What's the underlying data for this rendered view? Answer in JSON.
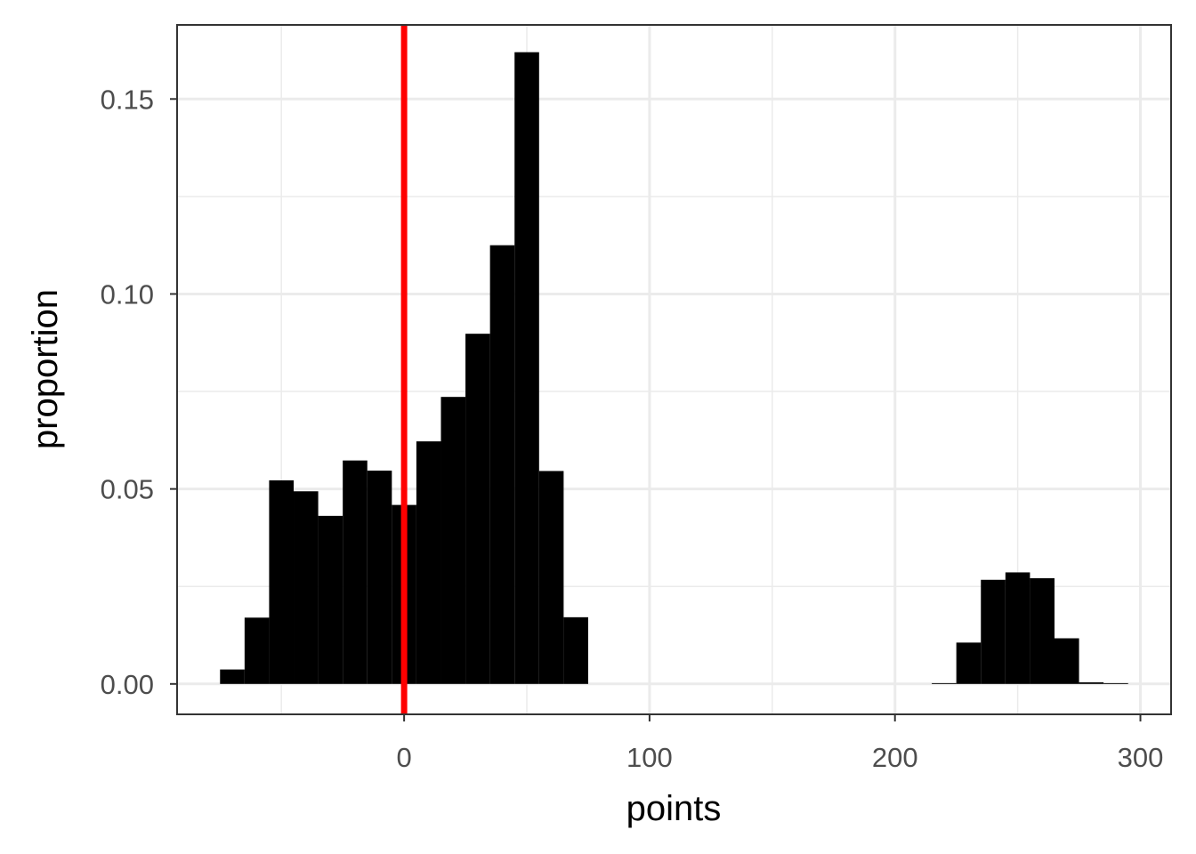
{
  "chart_data": {
    "type": "bar",
    "xlabel": "points",
    "ylabel": "proportion",
    "xlim": [
      -92.5,
      312.5
    ],
    "ylim": [
      -0.0078,
      0.169
    ],
    "x_ticks": [
      {
        "value": 0,
        "label": "0"
      },
      {
        "value": 100,
        "label": "100"
      },
      {
        "value": 200,
        "label": "200"
      },
      {
        "value": 300,
        "label": "300"
      }
    ],
    "y_ticks": [
      {
        "value": 0.0,
        "label": "0.00"
      },
      {
        "value": 0.05,
        "label": "0.05"
      },
      {
        "value": 0.1,
        "label": "0.10"
      },
      {
        "value": 0.15,
        "label": "0.15"
      }
    ],
    "x_minor_grid": [
      -50,
      50,
      150,
      250
    ],
    "y_minor_grid": [
      0.025,
      0.075,
      0.125
    ],
    "grid": true,
    "bin_width": 10,
    "bins": [
      {
        "x": -70,
        "y": 0.0037
      },
      {
        "x": -60,
        "y": 0.017
      },
      {
        "x": -50,
        "y": 0.0522
      },
      {
        "x": -40,
        "y": 0.0494
      },
      {
        "x": -30,
        "y": 0.0431
      },
      {
        "x": -20,
        "y": 0.0573
      },
      {
        "x": -10,
        "y": 0.0547
      },
      {
        "x": 0,
        "y": 0.0459
      },
      {
        "x": 10,
        "y": 0.0622
      },
      {
        "x": 20,
        "y": 0.0736
      },
      {
        "x": 30,
        "y": 0.0898
      },
      {
        "x": 40,
        "y": 0.1125
      },
      {
        "x": 50,
        "y": 0.162
      },
      {
        "x": 60,
        "y": 0.0546
      },
      {
        "x": 70,
        "y": 0.0171
      },
      {
        "x": 220,
        "y": 0.0002
      },
      {
        "x": 230,
        "y": 0.0106
      },
      {
        "x": 240,
        "y": 0.0267
      },
      {
        "x": 250,
        "y": 0.0286
      },
      {
        "x": 260,
        "y": 0.0271
      },
      {
        "x": 270,
        "y": 0.0117
      },
      {
        "x": 280,
        "y": 0.0004
      },
      {
        "x": 290,
        "y": 0.0002
      }
    ],
    "reference_line": {
      "x": 0,
      "color": "#ff0000"
    },
    "bar_color": "#000000"
  }
}
